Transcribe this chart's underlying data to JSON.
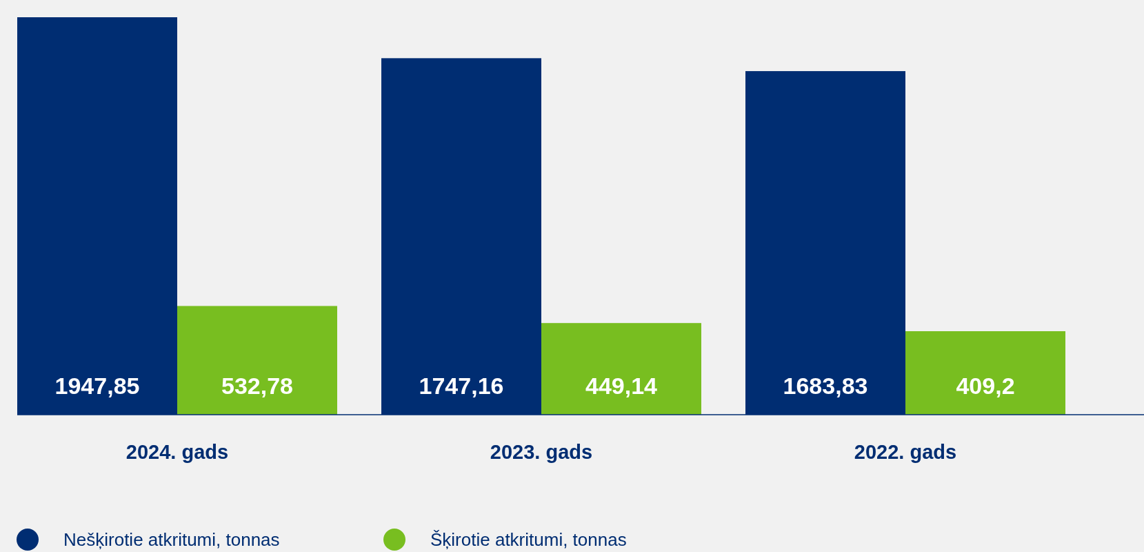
{
  "chart_data": {
    "type": "bar",
    "categories": [
      "2024. gads",
      "2023. gads",
      "2022. gads"
    ],
    "series": [
      {
        "name": "Nešķirotie atkritumi, tonnas",
        "color": "#002d72",
        "values": [
          1947.85,
          1747.16,
          1683.83
        ],
        "value_labels": [
          "1947,85",
          "1747,16",
          "1683,83"
        ]
      },
      {
        "name": "Šķirotie atkritumi, tonnas",
        "color": "#78be20",
        "values": [
          532.78,
          449.14,
          409.2
        ],
        "value_labels": [
          "532,78",
          "449,14",
          "409,2"
        ]
      }
    ],
    "relative": false,
    "legend": "bottom"
  }
}
